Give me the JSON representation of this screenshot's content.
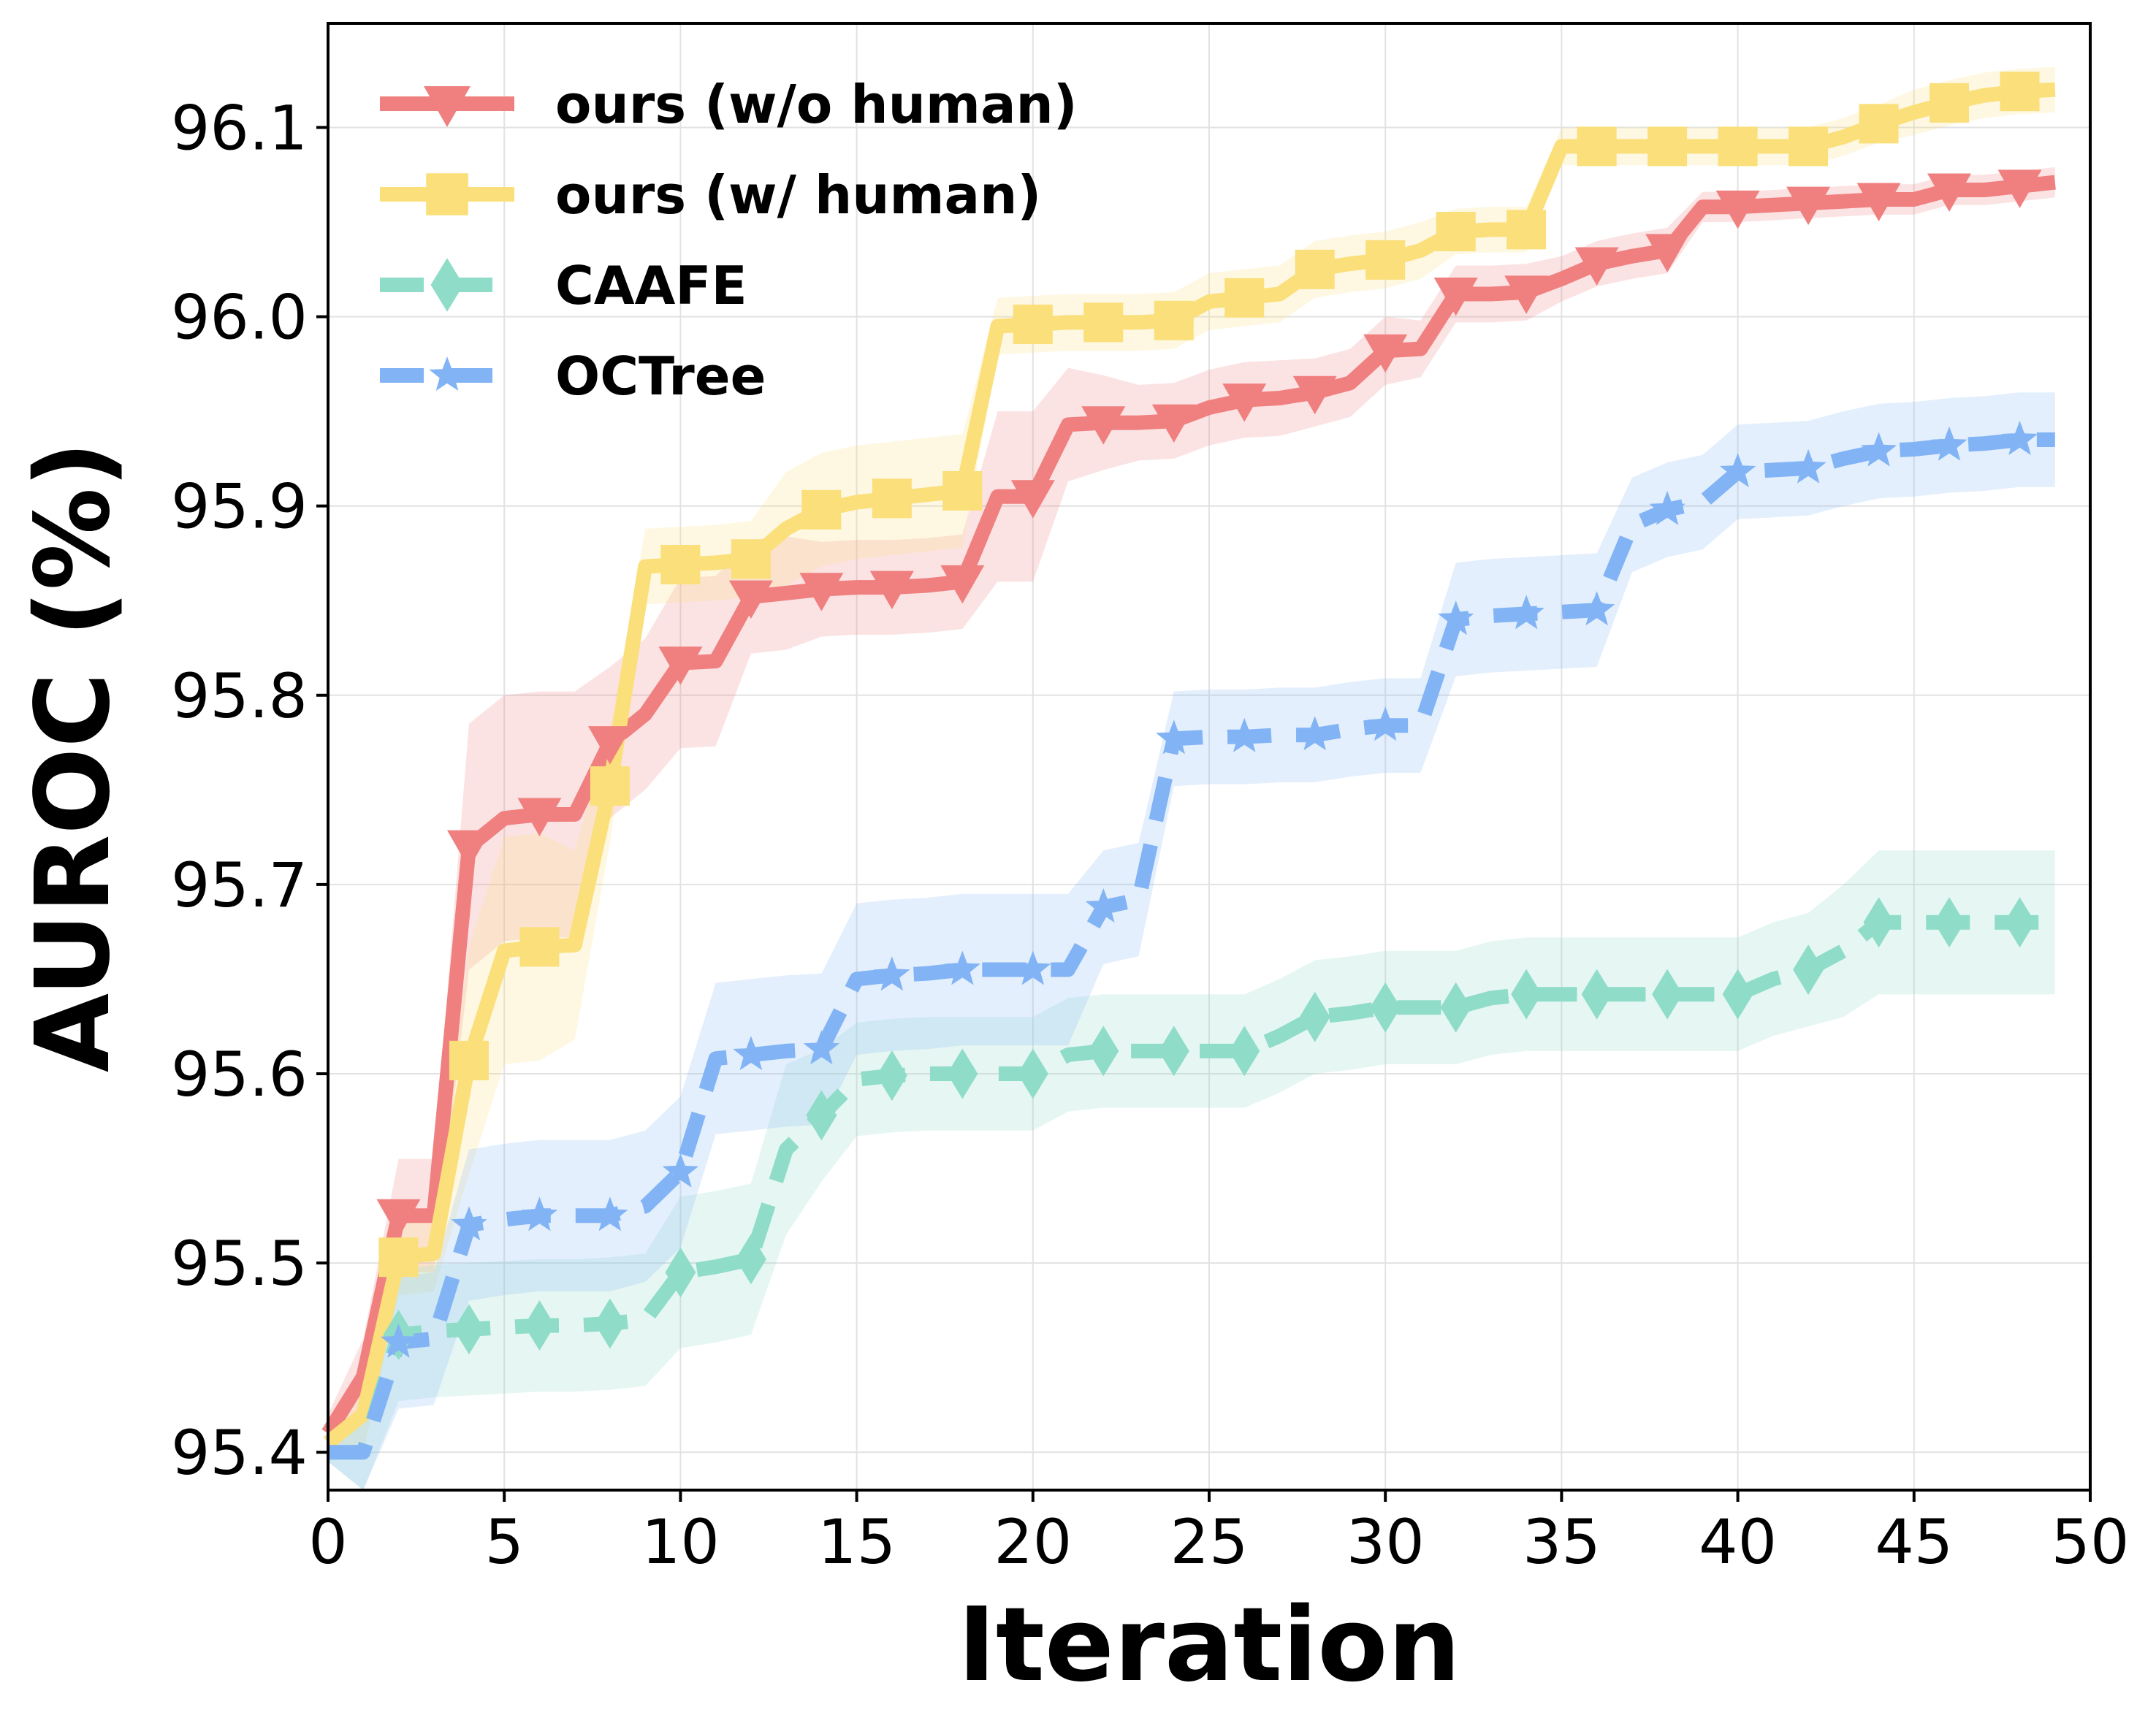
{
  "chart_data": {
    "type": "line",
    "xlabel": "Iteration",
    "ylabel": "AUROC (%)",
    "xlim": [
      0,
      50
    ],
    "ylim": [
      95.38,
      96.155
    ],
    "xticks": [
      0,
      5,
      10,
      15,
      20,
      25,
      30,
      35,
      40,
      45,
      50
    ],
    "yticks": [
      95.4,
      95.5,
      95.6,
      95.7,
      95.8,
      95.9,
      96.0,
      96.1
    ],
    "grid": true,
    "legend_position": "top-left",
    "series": [
      {
        "name": "ours (w/o human)",
        "color": "#F08080",
        "line_style": "solid",
        "marker": "triangle-down-icon",
        "x": [
          0,
          1,
          2,
          3,
          4,
          5,
          6,
          7,
          8,
          9,
          10,
          11,
          12,
          13,
          14,
          15,
          16,
          17,
          18,
          19,
          20,
          21,
          22,
          23,
          24,
          25,
          26,
          27,
          28,
          29,
          30,
          31,
          32,
          33,
          34,
          35,
          36,
          37,
          38,
          39,
          40,
          41,
          42,
          43,
          44,
          45,
          46,
          47,
          48,
          49
        ],
        "y": [
          95.41,
          95.44,
          95.525,
          95.525,
          95.72,
          95.735,
          95.737,
          95.737,
          95.775,
          95.79,
          95.817,
          95.818,
          95.852,
          95.854,
          95.856,
          95.857,
          95.857,
          95.858,
          95.86,
          95.905,
          95.905,
          95.943,
          95.944,
          95.944,
          95.945,
          95.952,
          95.956,
          95.957,
          95.96,
          95.965,
          95.982,
          95.983,
          96.012,
          96.012,
          96.013,
          96.02,
          96.028,
          96.032,
          96.035,
          96.058,
          96.058,
          96.059,
          96.06,
          96.061,
          96.062,
          96.062,
          96.067,
          96.067,
          96.069,
          96.071
        ],
        "band": [
          0.01,
          0.02,
          0.03,
          0.03,
          0.065,
          0.065,
          0.065,
          0.065,
          0.04,
          0.04,
          0.045,
          0.045,
          0.03,
          0.03,
          0.025,
          0.025,
          0.025,
          0.025,
          0.025,
          0.045,
          0.045,
          0.03,
          0.025,
          0.02,
          0.02,
          0.02,
          0.02,
          0.02,
          0.018,
          0.018,
          0.018,
          0.015,
          0.015,
          0.015,
          0.015,
          0.012,
          0.012,
          0.012,
          0.012,
          0.008,
          0.008,
          0.008,
          0.008,
          0.008,
          0.008,
          0.008,
          0.008,
          0.008,
          0.008,
          0.008
        ],
        "markers_at": [
          2,
          4,
          6,
          8,
          10,
          12,
          14,
          16,
          18,
          20,
          22,
          24,
          26,
          28,
          30,
          32,
          34,
          36,
          38,
          40,
          42,
          44,
          46,
          48
        ]
      },
      {
        "name": "ours (w/ human)",
        "color": "#FADF7A",
        "line_style": "solid",
        "marker": "square-icon",
        "x": [
          0,
          1,
          2,
          3,
          4,
          5,
          6,
          7,
          8,
          9,
          10,
          11,
          12,
          13,
          14,
          15,
          16,
          17,
          18,
          19,
          20,
          21,
          22,
          23,
          24,
          25,
          26,
          27,
          28,
          29,
          30,
          31,
          32,
          33,
          34,
          35,
          36,
          37,
          38,
          39,
          40,
          41,
          42,
          43,
          44,
          45,
          46,
          47,
          48,
          49
        ],
        "y": [
          95.405,
          95.42,
          95.503,
          95.505,
          95.607,
          95.665,
          95.667,
          95.668,
          95.752,
          95.868,
          95.869,
          95.87,
          95.872,
          95.888,
          95.898,
          95.902,
          95.904,
          95.906,
          95.908,
          95.995,
          95.996,
          95.997,
          95.997,
          95.997,
          95.998,
          96.008,
          96.01,
          96.012,
          96.025,
          96.028,
          96.03,
          96.035,
          96.045,
          96.046,
          96.046,
          96.09,
          96.09,
          96.09,
          96.09,
          96.09,
          96.09,
          96.09,
          96.09,
          96.095,
          96.102,
          96.108,
          96.113,
          96.117,
          96.119,
          96.12
        ],
        "band": [
          0.01,
          0.02,
          0.02,
          0.02,
          0.06,
          0.06,
          0.06,
          0.05,
          0.03,
          0.02,
          0.02,
          0.02,
          0.02,
          0.03,
          0.03,
          0.03,
          0.03,
          0.03,
          0.03,
          0.015,
          0.015,
          0.015,
          0.015,
          0.015,
          0.015,
          0.015,
          0.015,
          0.015,
          0.015,
          0.015,
          0.015,
          0.015,
          0.012,
          0.012,
          0.012,
          0.01,
          0.01,
          0.01,
          0.01,
          0.01,
          0.01,
          0.01,
          0.01,
          0.01,
          0.01,
          0.012,
          0.012,
          0.012,
          0.012,
          0.012
        ],
        "markers_at": [
          2,
          4,
          6,
          8,
          10,
          12,
          14,
          16,
          18,
          20,
          22,
          24,
          26,
          28,
          30,
          32,
          34,
          36,
          38,
          40,
          42,
          44,
          46,
          48
        ]
      },
      {
        "name": "CAAFE",
        "color": "#8FDCC8",
        "line_style": "dashed",
        "marker": "diamond-icon",
        "x": [
          0,
          1,
          2,
          3,
          4,
          5,
          6,
          7,
          8,
          9,
          10,
          11,
          12,
          13,
          14,
          15,
          16,
          17,
          18,
          19,
          20,
          21,
          22,
          23,
          24,
          25,
          26,
          27,
          28,
          29,
          30,
          31,
          32,
          33,
          34,
          35,
          36,
          37,
          38,
          39,
          40,
          41,
          42,
          43,
          44,
          45,
          46,
          47,
          48,
          49
        ],
        "y": [
          95.4,
          95.4,
          95.462,
          95.464,
          95.465,
          95.466,
          95.467,
          95.467,
          95.468,
          95.47,
          95.495,
          95.498,
          95.502,
          95.56,
          95.578,
          95.597,
          95.599,
          95.6,
          95.6,
          95.6,
          95.6,
          95.61,
          95.612,
          95.612,
          95.612,
          95.612,
          95.612,
          95.62,
          95.63,
          95.632,
          95.635,
          95.635,
          95.635,
          95.64,
          95.642,
          95.642,
          95.642,
          95.642,
          95.642,
          95.642,
          95.642,
          95.65,
          95.655,
          95.665,
          95.68,
          95.68,
          95.68,
          95.68,
          95.68,
          95.68
        ],
        "band": [
          0.005,
          0.02,
          0.035,
          0.035,
          0.035,
          0.035,
          0.035,
          0.035,
          0.035,
          0.035,
          0.04,
          0.04,
          0.04,
          0.045,
          0.035,
          0.03,
          0.03,
          0.03,
          0.03,
          0.03,
          0.03,
          0.03,
          0.03,
          0.03,
          0.03,
          0.03,
          0.03,
          0.03,
          0.03,
          0.03,
          0.03,
          0.03,
          0.03,
          0.03,
          0.03,
          0.03,
          0.03,
          0.03,
          0.03,
          0.03,
          0.03,
          0.03,
          0.03,
          0.035,
          0.038,
          0.038,
          0.038,
          0.038,
          0.038,
          0.038
        ],
        "markers_at": [
          2,
          4,
          6,
          8,
          10,
          12,
          14,
          16,
          18,
          20,
          22,
          24,
          26,
          28,
          30,
          32,
          34,
          36,
          38,
          40,
          42,
          44,
          46,
          48
        ]
      },
      {
        "name": "OCTree",
        "color": "#82B4F5",
        "line_style": "dashed",
        "marker": "star-icon",
        "x": [
          0,
          1,
          2,
          3,
          4,
          5,
          6,
          7,
          8,
          9,
          10,
          11,
          12,
          13,
          14,
          15,
          16,
          17,
          18,
          19,
          20,
          21,
          22,
          23,
          24,
          25,
          26,
          27,
          28,
          29,
          30,
          31,
          32,
          33,
          34,
          35,
          36,
          37,
          38,
          39,
          40,
          41,
          42,
          43,
          44,
          45,
          46,
          47,
          48,
          49
        ],
        "y": [
          95.4,
          95.4,
          95.458,
          95.46,
          95.52,
          95.523,
          95.525,
          95.525,
          95.525,
          95.53,
          95.548,
          95.608,
          95.61,
          95.612,
          95.613,
          95.65,
          95.652,
          95.653,
          95.655,
          95.655,
          95.655,
          95.655,
          95.688,
          95.692,
          95.777,
          95.778,
          95.778,
          95.779,
          95.779,
          95.782,
          95.784,
          95.784,
          95.84,
          95.842,
          95.843,
          95.844,
          95.845,
          95.89,
          95.898,
          95.902,
          95.918,
          95.919,
          95.92,
          95.925,
          95.929,
          95.93,
          95.932,
          95.933,
          95.935,
          95.935
        ],
        "band": [
          0.005,
          0.02,
          0.035,
          0.035,
          0.04,
          0.04,
          0.04,
          0.04,
          0.04,
          0.04,
          0.04,
          0.04,
          0.04,
          0.04,
          0.04,
          0.04,
          0.04,
          0.04,
          0.04,
          0.04,
          0.04,
          0.04,
          0.03,
          0.03,
          0.025,
          0.025,
          0.025,
          0.025,
          0.025,
          0.025,
          0.025,
          0.025,
          0.03,
          0.03,
          0.03,
          0.03,
          0.03,
          0.025,
          0.025,
          0.025,
          0.025,
          0.025,
          0.025,
          0.025,
          0.025,
          0.025,
          0.025,
          0.025,
          0.025,
          0.025
        ],
        "markers_at": [
          2,
          4,
          6,
          8,
          10,
          12,
          14,
          16,
          18,
          20,
          22,
          24,
          26,
          28,
          30,
          32,
          34,
          36,
          38,
          40,
          42,
          44,
          46,
          48
        ]
      }
    ]
  }
}
